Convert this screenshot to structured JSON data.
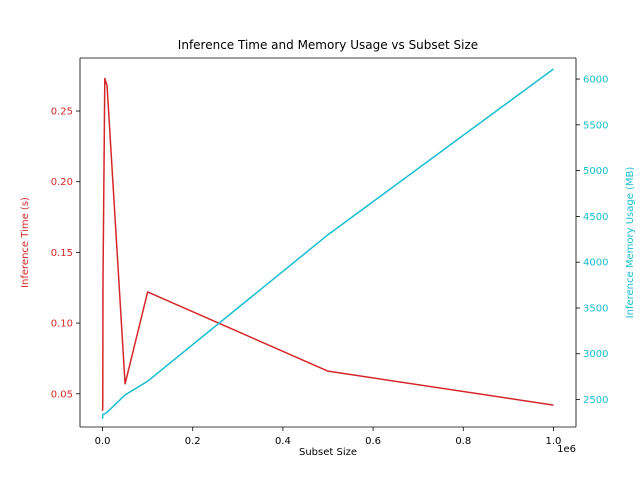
{
  "chart_data": {
    "type": "line",
    "title": "Inference Time and Memory Usage vs Subset Size",
    "xlabel": "Subset Size",
    "x_offset_label": "1e6",
    "x_ticks": [
      0,
      200000,
      400000,
      600000,
      800000,
      1000000
    ],
    "x_tick_labels": [
      "0.0",
      "0.2",
      "0.4",
      "0.6",
      "0.8",
      "1.0"
    ],
    "xlim": [
      -50000,
      1050000
    ],
    "x": [
      100,
      500,
      1000,
      5000,
      10000,
      50000,
      100000,
      500000,
      1000000
    ],
    "left_axis": {
      "label": "Inference Time (s)",
      "color": "#d62728",
      "ylim": [
        0.0265,
        0.2875
      ],
      "ticks": [
        0.05,
        0.1,
        0.15,
        0.2,
        0.25
      ],
      "tick_labels": [
        "0.05",
        "0.10",
        "0.15",
        "0.20",
        "0.25"
      ]
    },
    "right_axis": {
      "label": "Inference Memory Usage (MB)",
      "color": "#17becf",
      "ylim": [
        2200,
        6230
      ],
      "ticks": [
        2500,
        3000,
        3500,
        4000,
        4500,
        5000,
        5500,
        6000
      ],
      "tick_labels": [
        "2500",
        "3000",
        "3500",
        "4000",
        "4500",
        "5000",
        "5500",
        "6000"
      ]
    },
    "series": [
      {
        "axis": "left",
        "color": "#d62728",
        "values": [
          0.038,
          0.043,
          0.13,
          0.273,
          0.268,
          0.057,
          0.122,
          0.066,
          0.042
        ]
      },
      {
        "axis": "right",
        "color": "#17becf",
        "values": [
          2290,
          2330,
          2340,
          2345,
          2360,
          2550,
          2700,
          4300,
          6110
        ]
      }
    ]
  }
}
